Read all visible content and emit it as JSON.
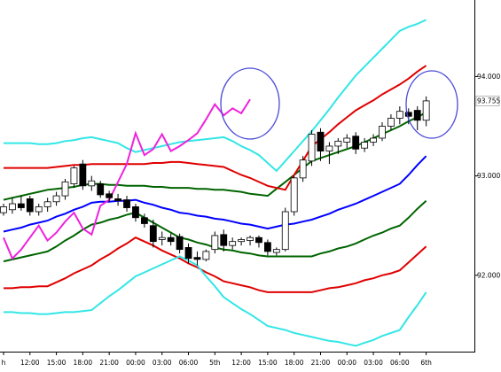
{
  "chart_data": {
    "type": "candlestick",
    "categories": [
      "h",
      null,
      null,
      "12:00",
      null,
      null,
      "15:00",
      null,
      null,
      "18:00",
      null,
      null,
      "21:00",
      null,
      null,
      "00:00",
      null,
      null,
      "03:00",
      null,
      null,
      "06:00",
      null,
      null,
      "5th",
      null,
      null,
      "12:00",
      null,
      null,
      "15:00",
      null,
      null,
      "18:00",
      null,
      null,
      "21:00",
      null,
      null,
      "00:00",
      null,
      null,
      "03:00",
      null,
      null,
      "06:00",
      null,
      null,
      "6th"
    ],
    "open": [
      92.63,
      92.66,
      92.72,
      92.77,
      92.64,
      92.69,
      92.74,
      92.8,
      92.92,
      93.12,
      92.9,
      92.92,
      92.82,
      92.77,
      92.76,
      92.69,
      92.58,
      92.5,
      92.36,
      92.38,
      92.39,
      92.28,
      92.18,
      92.16,
      92.26,
      92.41,
      92.3,
      92.34,
      92.35,
      92.38,
      92.33,
      92.23,
      92.26,
      92.64,
      92.98,
      93.15,
      93.44,
      93.25,
      93.3,
      93.34,
      93.4,
      93.28,
      93.34,
      93.38,
      93.5,
      93.58,
      93.64,
      93.66,
      93.56
    ],
    "high": [
      92.72,
      92.78,
      92.8,
      92.8,
      92.72,
      92.78,
      92.84,
      92.97,
      93.1,
      93.16,
      93.0,
      92.95,
      92.85,
      92.82,
      92.8,
      92.72,
      92.62,
      92.56,
      92.44,
      92.42,
      92.42,
      92.32,
      92.24,
      92.26,
      92.44,
      92.46,
      92.38,
      92.38,
      92.4,
      92.4,
      92.36,
      92.28,
      92.68,
      93.0,
      93.2,
      93.46,
      93.48,
      93.34,
      93.38,
      93.42,
      93.44,
      93.38,
      93.42,
      93.54,
      93.62,
      93.7,
      93.68,
      93.7,
      93.8
    ],
    "low": [
      92.6,
      92.62,
      92.65,
      92.6,
      92.6,
      92.64,
      92.7,
      92.76,
      92.88,
      92.86,
      92.85,
      92.78,
      92.74,
      92.7,
      92.64,
      92.54,
      92.48,
      92.28,
      92.3,
      92.3,
      92.22,
      92.12,
      92.1,
      92.14,
      92.22,
      92.24,
      92.26,
      92.3,
      92.3,
      92.28,
      92.2,
      92.2,
      92.24,
      92.6,
      92.94,
      93.1,
      93.15,
      93.12,
      93.22,
      93.28,
      93.22,
      93.24,
      93.3,
      93.35,
      93.46,
      93.52,
      93.52,
      93.46,
      93.5
    ],
    "close": [
      92.69,
      92.72,
      92.68,
      92.64,
      92.69,
      92.74,
      92.8,
      92.94,
      93.08,
      92.9,
      92.95,
      92.81,
      92.78,
      92.75,
      92.68,
      92.58,
      92.52,
      92.34,
      92.38,
      92.34,
      92.26,
      92.17,
      92.16,
      92.24,
      92.4,
      92.3,
      92.34,
      92.36,
      92.38,
      92.33,
      92.24,
      92.26,
      92.64,
      92.98,
      93.16,
      93.42,
      93.25,
      93.3,
      93.35,
      93.38,
      93.27,
      93.34,
      93.38,
      93.5,
      93.58,
      93.65,
      93.6,
      93.56,
      93.755
    ],
    "up_color": "#ffffff",
    "down_color": "#000000",
    "candle_edge": "#000000",
    "series": [
      {
        "color": "#0000ff",
        "values": [
          92.44,
          92.46,
          92.48,
          92.51,
          92.53,
          92.55,
          92.59,
          92.62,
          92.66,
          92.69,
          92.73,
          92.74,
          92.74,
          92.75,
          92.75,
          92.76,
          92.73,
          92.71,
          92.68,
          92.66,
          92.63,
          92.62,
          92.6,
          92.59,
          92.57,
          92.56,
          92.54,
          92.52,
          92.51,
          92.49,
          92.47,
          92.49,
          92.51,
          92.52,
          92.54,
          92.56,
          92.59,
          92.62,
          92.66,
          92.69,
          92.72,
          92.76,
          92.8,
          92.84,
          92.88,
          92.92,
          93.01,
          93.11,
          93.2
        ]
      },
      {
        "color": "#006400",
        "values": [
          92.76,
          92.78,
          92.8,
          92.82,
          92.84,
          92.86,
          92.87,
          92.88,
          92.89,
          92.91,
          92.92,
          92.92,
          92.91,
          92.91,
          92.9,
          92.9,
          92.9,
          92.89,
          92.89,
          92.88,
          92.88,
          92.88,
          92.87,
          92.87,
          92.86,
          92.86,
          92.85,
          92.84,
          92.82,
          92.81,
          92.8,
          92.87,
          92.94,
          93.01,
          93.08,
          93.15,
          93.18,
          93.21,
          93.24,
          93.27,
          93.3,
          93.34,
          93.38,
          93.42,
          93.46,
          93.5,
          93.55,
          93.59,
          93.64
        ]
      },
      {
        "color": "#006400",
        "values": [
          92.14,
          92.16,
          92.18,
          92.2,
          92.22,
          92.24,
          92.29,
          92.35,
          92.4,
          92.46,
          92.51,
          92.53,
          92.56,
          92.58,
          92.61,
          92.63,
          92.58,
          92.53,
          92.48,
          92.43,
          92.38,
          92.36,
          92.33,
          92.31,
          92.28,
          92.26,
          92.25,
          92.23,
          92.22,
          92.2,
          92.19,
          92.19,
          92.19,
          92.19,
          92.19,
          92.19,
          92.22,
          92.24,
          92.27,
          92.29,
          92.32,
          92.36,
          92.4,
          92.43,
          92.47,
          92.5,
          92.58,
          92.67,
          92.75
        ]
      },
      {
        "color": "#e00000",
        "values": [
          93.08,
          93.08,
          93.08,
          93.08,
          93.08,
          93.08,
          93.09,
          93.1,
          93.11,
          93.11,
          93.12,
          93.12,
          93.12,
          93.12,
          93.12,
          93.12,
          93.12,
          93.13,
          93.13,
          93.14,
          93.14,
          93.13,
          93.12,
          93.11,
          93.1,
          93.09,
          93.05,
          93.01,
          92.98,
          92.94,
          92.9,
          92.88,
          92.86,
          93.01,
          93.15,
          93.3,
          93.37,
          93.44,
          93.52,
          93.59,
          93.66,
          93.71,
          93.76,
          93.82,
          93.87,
          93.92,
          93.98,
          94.05,
          94.11
        ]
      },
      {
        "color": "#e00000",
        "values": [
          91.87,
          91.87,
          91.88,
          91.88,
          91.89,
          91.89,
          91.93,
          91.97,
          92.02,
          92.06,
          92.1,
          92.16,
          92.21,
          92.27,
          92.32,
          92.38,
          92.34,
          92.3,
          92.25,
          92.21,
          92.17,
          92.12,
          92.08,
          92.03,
          91.99,
          91.94,
          91.92,
          91.9,
          91.88,
          91.85,
          91.83,
          91.83,
          91.83,
          91.83,
          91.83,
          91.83,
          91.85,
          91.87,
          91.88,
          91.9,
          91.92,
          91.95,
          91.97,
          92.0,
          92.02,
          92.05,
          92.13,
          92.21,
          92.29
        ]
      },
      {
        "color": "#33e6e6",
        "values": [
          93.33,
          93.33,
          93.33,
          93.33,
          93.32,
          93.32,
          93.33,
          93.35,
          93.36,
          93.38,
          93.39,
          93.37,
          93.35,
          93.33,
          93.28,
          93.24,
          93.26,
          93.28,
          93.3,
          93.32,
          93.34,
          93.35,
          93.36,
          93.37,
          93.38,
          93.39,
          93.35,
          93.3,
          93.26,
          93.21,
          93.13,
          93.05,
          93.15,
          93.25,
          93.35,
          93.45,
          93.56,
          93.67,
          93.79,
          93.9,
          94.01,
          94.1,
          94.19,
          94.28,
          94.37,
          94.46,
          94.5,
          94.53,
          94.57
        ]
      },
      {
        "color": "#33e6e6",
        "values": [
          91.63,
          91.63,
          91.62,
          91.62,
          91.61,
          91.61,
          91.62,
          91.63,
          91.63,
          91.64,
          91.65,
          91.72,
          91.79,
          91.85,
          91.92,
          91.99,
          92.03,
          92.07,
          92.11,
          92.15,
          92.19,
          92.15,
          92.1,
          91.99,
          91.89,
          91.78,
          91.72,
          91.66,
          91.61,
          91.55,
          91.49,
          91.47,
          91.45,
          91.42,
          91.4,
          91.38,
          91.36,
          91.34,
          91.33,
          91.31,
          91.29,
          91.32,
          91.35,
          91.39,
          91.42,
          91.45,
          91.58,
          91.7,
          91.83
        ]
      },
      {
        "color": "#ee22dd",
        "values": [
          92.38,
          92.17,
          92.26,
          92.38,
          92.5,
          92.35,
          92.43,
          92.54,
          92.63,
          92.47,
          92.41,
          92.7,
          92.76,
          92.94,
          93.12,
          93.43,
          93.21,
          93.27,
          93.42,
          93.25,
          93.3,
          93.36,
          93.43,
          93.57,
          93.72,
          93.61,
          93.68,
          93.63,
          93.77,
          null,
          null,
          null,
          null,
          null,
          null,
          null,
          null,
          null,
          null,
          null,
          null,
          null,
          null,
          null,
          null,
          null,
          null,
          null,
          null
        ]
      }
    ],
    "ylim": [
      91.25,
      94.77
    ],
    "yticks": [
      {
        "value": 92,
        "label": "92.000"
      },
      {
        "value": 93,
        "label": "93.000"
      },
      {
        "value": 94,
        "label": "94.000"
      }
    ]
  }
}
